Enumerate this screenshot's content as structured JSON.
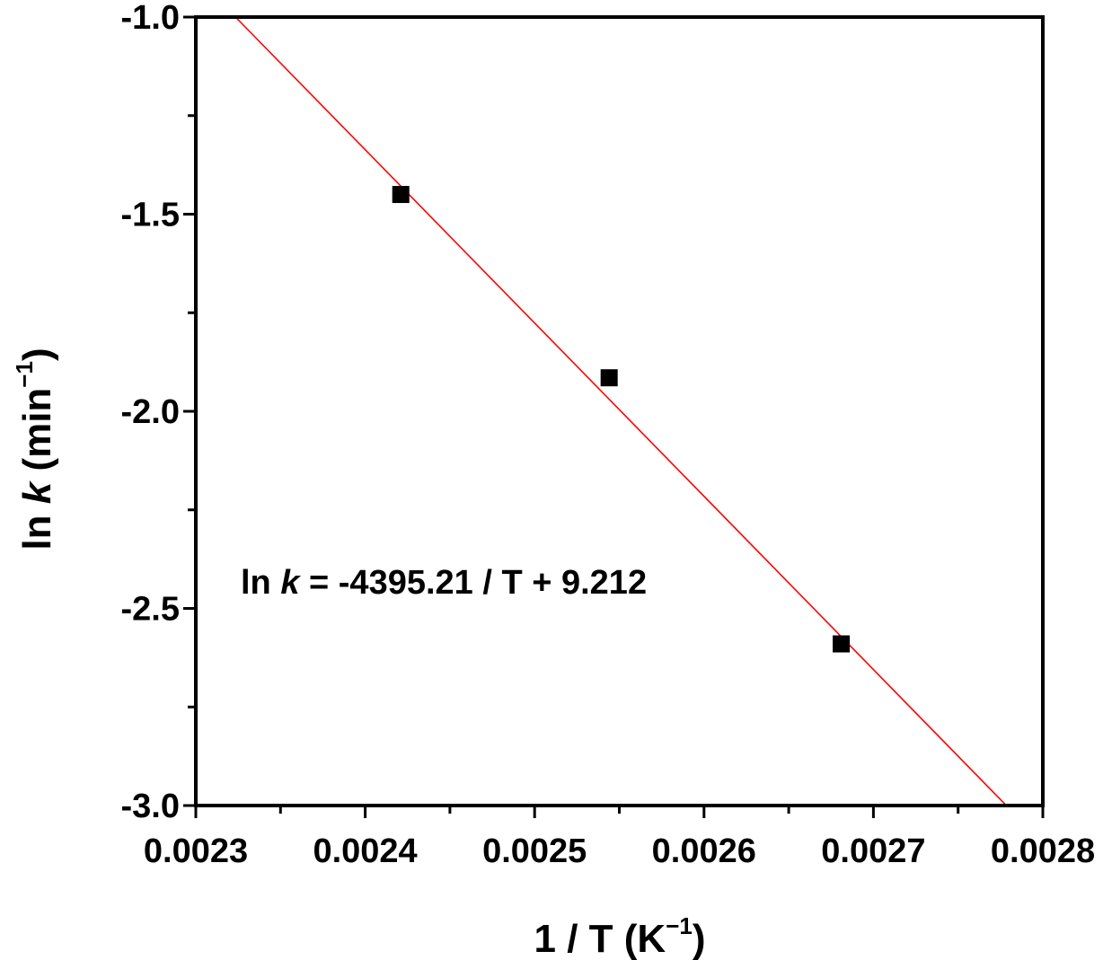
{
  "chart_data": {
    "type": "scatter",
    "title": "",
    "xlim": [
      0.0023,
      0.0028
    ],
    "ylim": [
      -3.0,
      -1.0
    ],
    "x_ticks": [
      "0.0023",
      "0.0024",
      "0.0025",
      "0.0026",
      "0.0027",
      "0.0028"
    ],
    "y_ticks": [
      "-1.0",
      "-1.5",
      "-2.0",
      "-2.5",
      "-3.0"
    ],
    "xlabel": {
      "pre": "1 / T (K",
      "sup": "−1",
      "post": ")"
    },
    "ylabel": {
      "pre": "ln ",
      "italic": "k",
      "mid": " (min",
      "sup": "−1",
      "post": ")"
    },
    "grid": false,
    "series": [
      {
        "type": "scatter",
        "marker": "square",
        "color": "#000000",
        "points": [
          {
            "x": 0.002421,
            "y": -1.45
          },
          {
            "x": 0.002544,
            "y": -1.915
          },
          {
            "x": 0.002681,
            "y": -2.59
          }
        ]
      },
      {
        "type": "line",
        "color": "#ff0000",
        "slope": -4395.21,
        "intercept": 9.212
      }
    ],
    "annotation": {
      "pre": "ln ",
      "italic": "k",
      "post": " = -4395.21 / T + 9.212"
    }
  }
}
